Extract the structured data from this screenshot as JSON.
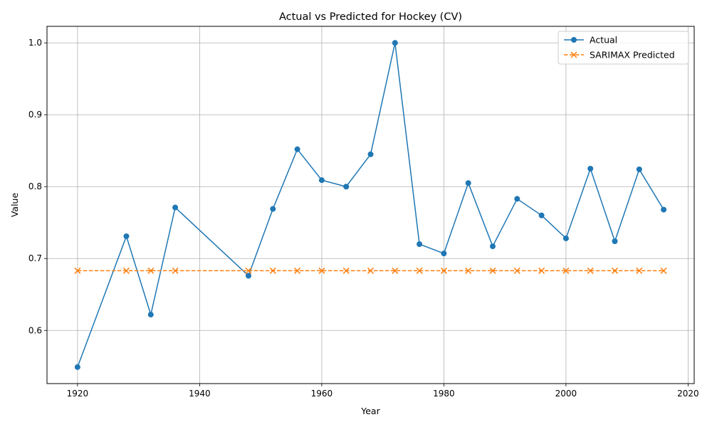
{
  "chart_data": {
    "type": "line",
    "title": "Actual vs Predicted for Hockey (CV)",
    "xlabel": "Year",
    "ylabel": "Value",
    "xlim": [
      1915,
      2021
    ],
    "ylim": [
      0.526,
      1.023
    ],
    "x_ticks": [
      "1920",
      "1940",
      "1960",
      "1980",
      "2000",
      "2020"
    ],
    "y_ticks": [
      "0.6",
      "0.7",
      "0.8",
      "0.9",
      "1.0"
    ],
    "grid": true,
    "legend_position": "top-right",
    "x": [
      1920,
      1928,
      1932,
      1936,
      1948,
      1952,
      1956,
      1960,
      1964,
      1968,
      1972,
      1976,
      1980,
      1984,
      1988,
      1992,
      1996,
      2000,
      2004,
      2008,
      2012,
      2016
    ],
    "series": [
      {
        "name": "Actual",
        "color": "#1f77b4",
        "marker": "circle",
        "linestyle": "solid",
        "values": [
          0.549,
          0.731,
          0.622,
          0.771,
          0.676,
          0.769,
          0.852,
          0.809,
          0.8,
          0.845,
          1.0,
          0.72,
          0.707,
          0.805,
          0.717,
          0.783,
          0.76,
          0.728,
          0.825,
          0.724,
          0.824,
          0.768
        ]
      },
      {
        "name": "SARIMAX Predicted",
        "color": "#ff7f0e",
        "marker": "x",
        "linestyle": "dashed",
        "values": [
          0.683,
          0.683,
          0.683,
          0.683,
          0.683,
          0.683,
          0.683,
          0.683,
          0.683,
          0.683,
          0.683,
          0.683,
          0.683,
          0.683,
          0.683,
          0.683,
          0.683,
          0.683,
          0.683,
          0.683,
          0.683,
          0.683
        ]
      }
    ]
  }
}
